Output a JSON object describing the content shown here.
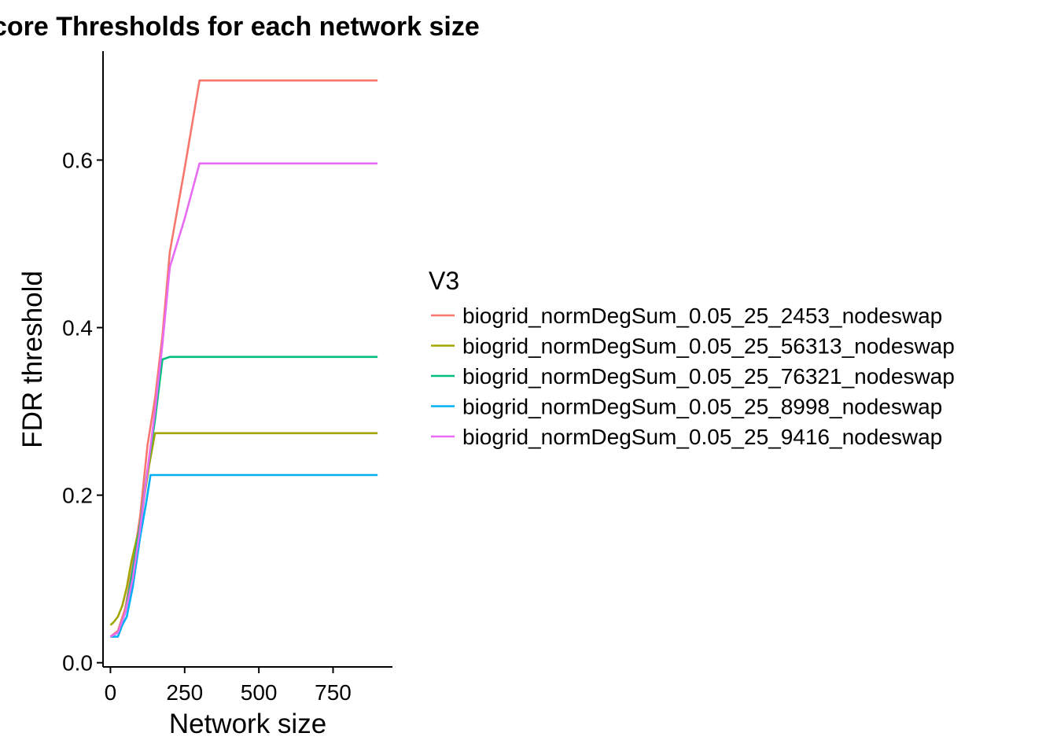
{
  "chart_data": {
    "type": "line",
    "title": "core Thresholds for each network size",
    "xlabel": "Network size",
    "ylabel": "FDR threshold",
    "xlim": [
      -25,
      950
    ],
    "ylim": [
      -0.005,
      0.73
    ],
    "x_ticks": [
      0,
      250,
      500,
      750
    ],
    "x_tick_labels": [
      "0",
      "250",
      "500",
      "750"
    ],
    "y_ticks": [
      0.0,
      0.2,
      0.4,
      0.6
    ],
    "y_tick_labels": [
      "0.0",
      "0.2",
      "0.4",
      "0.6"
    ],
    "grid": false,
    "legend": {
      "title": "V3",
      "placement": "right"
    },
    "series": [
      {
        "name": "biogrid_normDegSum_0.05_25_2453_nodeswap",
        "color": "#F8766D",
        "x": [
          0,
          25,
          50,
          75,
          100,
          125,
          150,
          175,
          200,
          250,
          300,
          900
        ],
        "y": [
          0.031,
          0.038,
          0.065,
          0.115,
          0.175,
          0.26,
          0.315,
          0.39,
          0.49,
          0.59,
          0.695,
          0.695
        ]
      },
      {
        "name": "biogrid_normDegSum_0.05_25_56313_nodeswap",
        "color": "#A3A500",
        "x": [
          0,
          10,
          25,
          40,
          55,
          70,
          80,
          90,
          100,
          115,
          130,
          150,
          900
        ],
        "y": [
          0.045,
          0.048,
          0.055,
          0.068,
          0.09,
          0.12,
          0.135,
          0.15,
          0.16,
          0.2,
          0.235,
          0.274,
          0.274
        ]
      },
      {
        "name": "biogrid_normDegSum_0.05_25_76321_nodeswap",
        "color": "#00BF7D",
        "x": [
          0,
          25,
          50,
          75,
          100,
          125,
          150,
          175,
          200,
          900
        ],
        "y": [
          0.031,
          0.036,
          0.06,
          0.11,
          0.165,
          0.23,
          0.29,
          0.362,
          0.365,
          0.365
        ]
      },
      {
        "name": "biogrid_normDegSum_0.05_25_8998_nodeswap",
        "color": "#00B0F6",
        "x": [
          0,
          10,
          25,
          40,
          55,
          75,
          100,
          120,
          135,
          900
        ],
        "y": [
          0.031,
          0.031,
          0.031,
          0.045,
          0.055,
          0.09,
          0.15,
          0.19,
          0.224,
          0.224
        ]
      },
      {
        "name": "biogrid_normDegSum_0.05_25_9416_nodeswap",
        "color": "#E76BF3",
        "x": [
          0,
          25,
          50,
          75,
          100,
          125,
          150,
          175,
          200,
          250,
          300,
          900
        ],
        "y": [
          0.031,
          0.036,
          0.06,
          0.1,
          0.16,
          0.23,
          0.3,
          0.38,
          0.472,
          0.53,
          0.596,
          0.596
        ]
      }
    ]
  }
}
